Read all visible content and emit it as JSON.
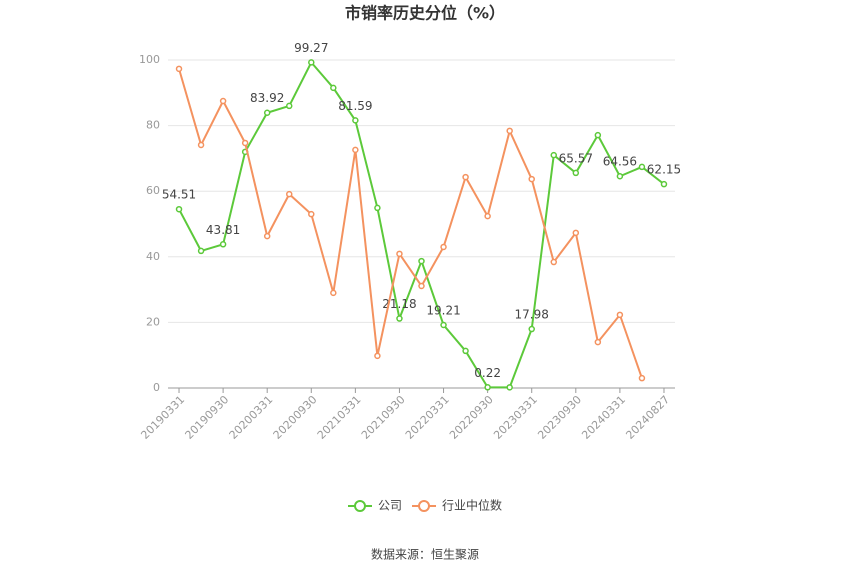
{
  "chart_data": {
    "type": "line",
    "title": "市销率历史分位（%）",
    "source": "数据来源：恒生聚源",
    "categories": [
      "20190331",
      null,
      "20190930",
      null,
      "20200331",
      null,
      "20200930",
      null,
      "20210331",
      null,
      "20210930",
      null,
      "20220331",
      null,
      "20220930",
      null,
      "20230331",
      null,
      "20230930",
      null,
      "20240331",
      null,
      "20240827"
    ],
    "series": [
      {
        "name": "公司",
        "color": "#5cc93a",
        "values": [
          54.51,
          41.8,
          43.81,
          72.0,
          83.92,
          86.0,
          99.27,
          91.5,
          81.59,
          54.9,
          21.18,
          38.7,
          19.21,
          11.3,
          0.22,
          0.2,
          17.98,
          71.0,
          65.57,
          77.1,
          64.56,
          67.4,
          62.15
        ],
        "value_labels": [
          "54.51",
          null,
          "43.81",
          null,
          "83.92",
          null,
          "99.27",
          null,
          "81.59",
          null,
          "21.18",
          null,
          "19.21",
          null,
          "0.22",
          null,
          "17.98",
          null,
          "65.57",
          null,
          "64.56",
          null,
          "62.15"
        ]
      },
      {
        "name": "行业中位数",
        "color": "#f4925f",
        "values": [
          97.3,
          74.1,
          87.5,
          74.7,
          46.3,
          59.1,
          53.0,
          29.0,
          72.6,
          9.8,
          40.9,
          31.1,
          43.0,
          64.3,
          52.4,
          78.4,
          63.7,
          38.4,
          47.3,
          14.0,
          22.3,
          3.0,
          null
        ]
      }
    ],
    "ylim": [
      0,
      100
    ],
    "yticks": [
      0,
      20,
      40,
      60,
      80,
      100
    ],
    "grid": true,
    "legend": "bottom"
  }
}
